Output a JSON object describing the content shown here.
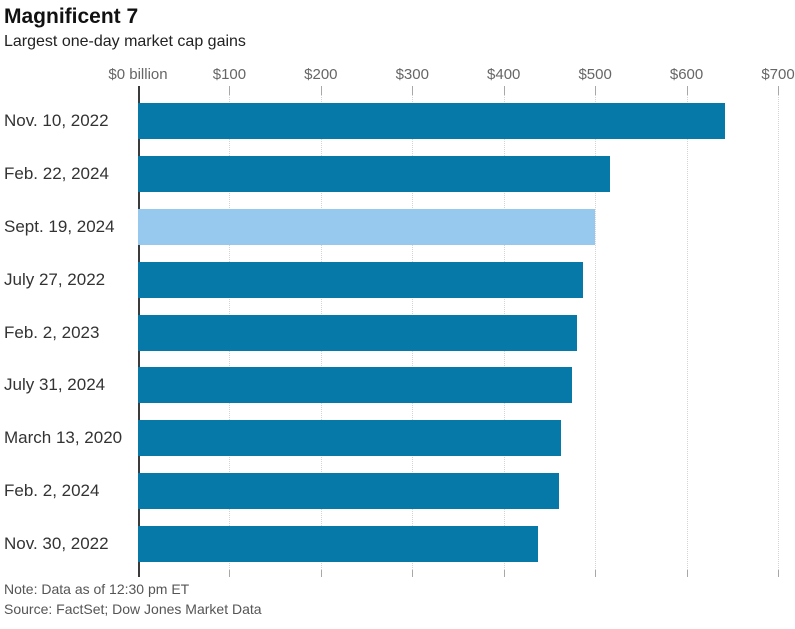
{
  "header": {
    "title": "Magnificent 7",
    "subtitle": "Largest one-day market cap gains"
  },
  "chart_data": {
    "type": "bar",
    "orientation": "horizontal",
    "title": "Magnificent 7",
    "subtitle": "Largest one-day market cap gains",
    "unit": "$ billion",
    "categories": [
      "Nov. 10, 2022",
      "Feb. 22, 2024",
      "Sept. 19, 2024",
      "July 27, 2022",
      "Feb. 2, 2023",
      "July 31, 2024",
      "March 13, 2020",
      "Feb. 2, 2024",
      "Nov. 30, 2022"
    ],
    "values": [
      642,
      516,
      500,
      487,
      480,
      475,
      463,
      461,
      437
    ],
    "highlight_index": 2,
    "highlighted_category": "Sept. 19, 2024",
    "xlim": [
      0,
      700
    ],
    "x_ticks": [
      0,
      100,
      200,
      300,
      400,
      500,
      600,
      700
    ],
    "x_tick_labels": [
      "$0 billion",
      "$100",
      "$200",
      "$300",
      "$400",
      "$500",
      "$600",
      "$700"
    ],
    "grid": true,
    "legend": false,
    "colors": {
      "bar": "#0779a9",
      "highlight": "#96c9ed",
      "gridline": "#d4d4d4",
      "axis": "#3b3b3b"
    }
  },
  "footer": {
    "note": "Note: Data as of 12:30 pm ET",
    "source": "Source: FactSet; Dow Jones Market Data"
  }
}
